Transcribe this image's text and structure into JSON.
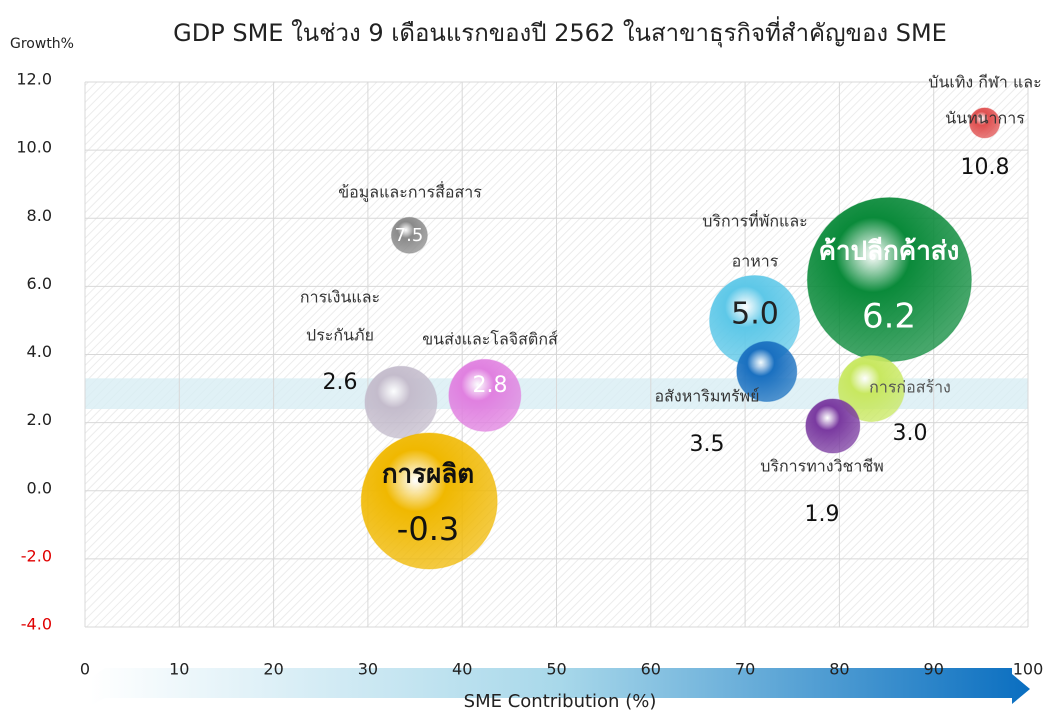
{
  "chart_data": {
    "type": "bubble",
    "title": "GDP SME ในช่วง 9 เดือนแรกของปี 2562 ในสาขาธุรกิจที่สำคัญของ SME",
    "y_label": "Growth%",
    "x_label": "SME Contribution (%)",
    "xlim": [
      0,
      100
    ],
    "xticks": [
      0,
      10,
      20,
      30,
      40,
      50,
      60,
      70,
      80,
      90,
      100
    ],
    "ylim": [
      -4,
      12
    ],
    "yticks": [
      {
        "value": -4,
        "label": "-4.0"
      },
      {
        "value": -2,
        "label": "-2.0"
      },
      {
        "value": 0,
        "label": "0.0"
      },
      {
        "value": 2,
        "label": "2.0"
      },
      {
        "value": 4,
        "label": "4.0"
      },
      {
        "value": 6,
        "label": "6.0"
      },
      {
        "value": 8,
        "label": "8.0"
      },
      {
        "value": 10,
        "label": "10.0"
      },
      {
        "value": 12,
        "label": "12.0"
      }
    ],
    "grid": true,
    "highlight_band": [
      2.4,
      3.3
    ],
    "points": [
      {
        "name": [
          "บันเทิง กีฬา และ",
          "นันทนาการ"
        ],
        "x": 95.4,
        "y": 10.8,
        "size": 15,
        "color": "#e05050",
        "value_label": "10.8"
      },
      {
        "name": [
          "ข้อมูลและการสื่อสาร"
        ],
        "x": 34.4,
        "y": 7.5,
        "size": 18,
        "color": "#8a8a8a",
        "value_label": "7.5"
      },
      {
        "name": [
          "บริการที่พักและ",
          "อาหาร"
        ],
        "x": 71.0,
        "y": 5.0,
        "size": 45,
        "color": "#5ec8e8",
        "value_label": "5.0"
      },
      {
        "name": [
          "ค้าปลีกค้าส่ง"
        ],
        "x": 85.3,
        "y": 6.2,
        "size": 82,
        "color": "#0a8a3a",
        "value_label": "6.2"
      },
      {
        "name": [
          "การเงินและ",
          "ประกันภัย"
        ],
        "x": 33.5,
        "y": 2.6,
        "size": 36,
        "color": "#c4bccc",
        "value_label": "2.6"
      },
      {
        "name": [
          "ขนส่งและโลจิสติกส์"
        ],
        "x": 42.4,
        "y": 2.8,
        "size": 36,
        "color": "#e080e0",
        "value_label": "2.8"
      },
      {
        "name": [
          "การผลิต"
        ],
        "x": 36.5,
        "y": -0.3,
        "size": 68,
        "color": "#f0b800",
        "value_label": "-0.3"
      },
      {
        "name": [
          "อสังหาริมทรัพย์"
        ],
        "x": 72.3,
        "y": 3.5,
        "size": 30,
        "color": "#1a70c0",
        "value_label": "3.5"
      },
      {
        "name": [
          "การก่อสร้าง"
        ],
        "x": 83.4,
        "y": 3.0,
        "size": 33,
        "color": "#c8e860",
        "value_label": "3.0"
      },
      {
        "name": [
          "บริการทางวิชาชีพ"
        ],
        "x": 79.3,
        "y": 1.9,
        "size": 27,
        "color": "#7a3aa0",
        "value_label": "1.9"
      }
    ]
  }
}
